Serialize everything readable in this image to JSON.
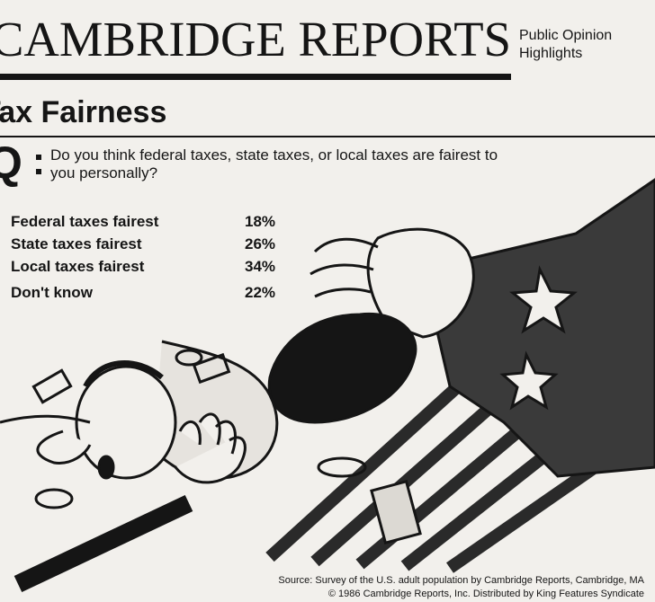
{
  "header": {
    "title": "CAMBRIDGE REPORTS",
    "tagline_1": "Public Opinion",
    "tagline_2": "Highlights"
  },
  "section_title": "Tax Fairness",
  "question": {
    "marker": "Q",
    "line_1": "Do you think federal taxes, state taxes, or local taxes are fairest to",
    "line_2": "you personally?"
  },
  "results": [
    {
      "label": "Federal taxes fairest",
      "value": "18%"
    },
    {
      "label": "State taxes fairest",
      "value": "26%"
    },
    {
      "label": "Local taxes fairest",
      "value": "34%"
    },
    {
      "label": "Don't know",
      "value": "22%"
    }
  ],
  "source": {
    "line_1": "Source: Survey of the U.S. adult population by Cambridge Reports, Cambridge, MA",
    "line_2": "© 1986 Cambridge Reports, Inc.   Distributed by King Features Syndicate"
  }
}
